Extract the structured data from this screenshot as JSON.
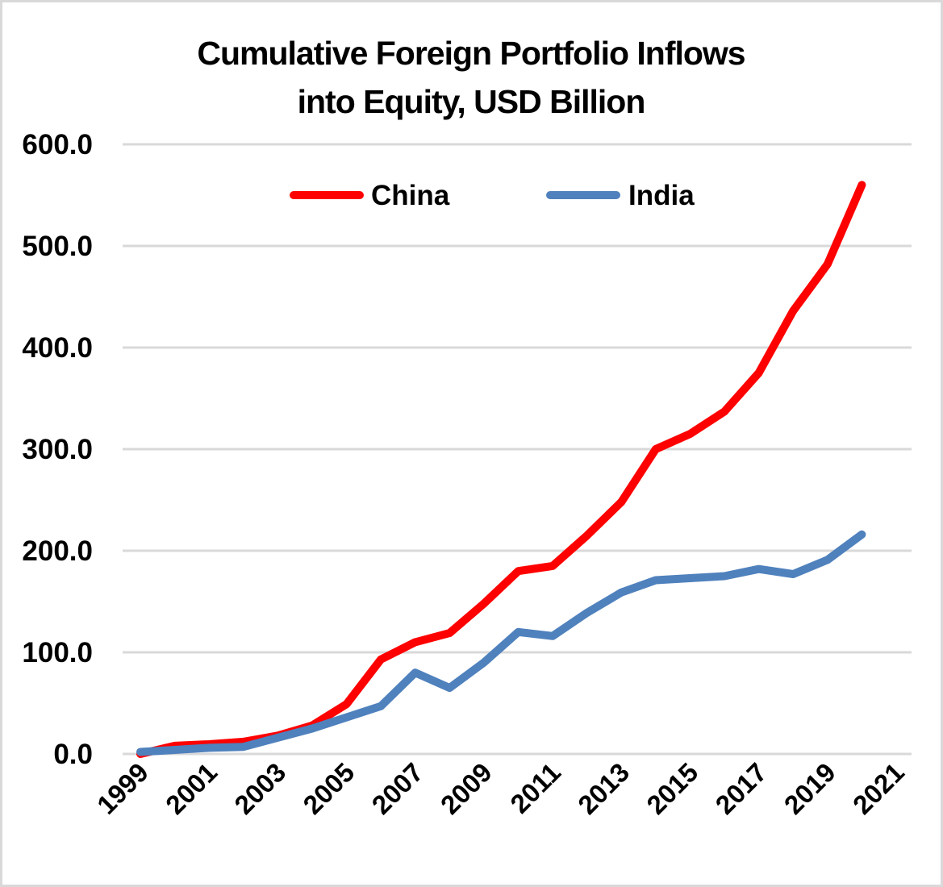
{
  "chart_data": {
    "type": "line",
    "title": "Cumulative Foreign Portfolio Inflows into Equity, USD Billion",
    "title_lines": [
      "Cumulative Foreign Portfolio Inflows",
      "into Equity, USD Billion"
    ],
    "xlabel": "",
    "ylabel": "",
    "ylim": [
      0,
      600
    ],
    "xlim": [
      1999,
      2021
    ],
    "y_ticks": [
      "0.0",
      "100.0",
      "200.0",
      "300.0",
      "400.0",
      "500.0",
      "600.0"
    ],
    "y_tick_values": [
      0,
      100,
      200,
      300,
      400,
      500,
      600
    ],
    "x_ticks": [
      "1999",
      "2001",
      "2003",
      "2005",
      "2007",
      "2009",
      "2011",
      "2013",
      "2015",
      "2017",
      "2019",
      "2021"
    ],
    "x_tick_values": [
      1999,
      2001,
      2003,
      2005,
      2007,
      2009,
      2011,
      2013,
      2015,
      2017,
      2019,
      2021
    ],
    "grid": true,
    "legend_position": "top-center",
    "x": [
      1999,
      2000,
      2001,
      2002,
      2003,
      2004,
      2005,
      2006,
      2007,
      2008,
      2009,
      2010,
      2011,
      2012,
      2013,
      2014,
      2015,
      2016,
      2017,
      2018,
      2019,
      2020
    ],
    "series": [
      {
        "name": "China",
        "color": "#ff0000",
        "values": [
          0,
          8,
          9.5,
          12,
          18,
          28,
          49,
          93,
          110,
          119,
          148,
          180,
          185,
          215,
          248,
          300,
          315,
          337,
          375,
          436,
          482,
          560
        ]
      },
      {
        "name": "India",
        "color": "#4f81bd",
        "values": [
          2,
          4,
          6,
          7,
          16,
          25,
          36,
          47,
          80,
          65,
          90,
          120,
          116,
          139,
          159,
          171,
          173,
          175,
          182,
          177,
          191,
          216
        ]
      }
    ]
  },
  "colors": {
    "grid": "#d9d9d9",
    "border": "#d9d9d9",
    "text": "#000000"
  }
}
